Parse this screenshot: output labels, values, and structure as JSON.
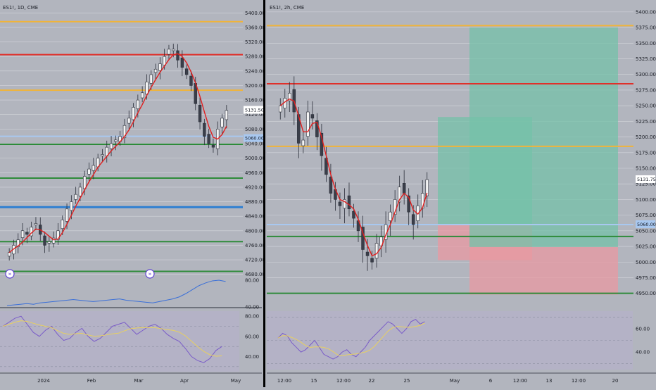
{
  "left_chart": {
    "title": "ES1!, 1D, CME",
    "price_tag": "5131.50",
    "blue_tag": "5060.00",
    "price_axis": [
      "5400.00",
      "5360.00",
      "5320.00",
      "5280.00",
      "5240.00",
      "5200.00",
      "5160.00",
      "5120.00",
      "5080.00",
      "5040.00",
      "5000.00",
      "4960.00",
      "4920.00",
      "4880.00",
      "4840.00",
      "4800.00",
      "4760.00",
      "4720.00",
      "4680.00"
    ],
    "indicator_axis": [
      "80.00",
      "40.00"
    ],
    "rsi_axis": [
      "80.00",
      "60.00",
      "40.00"
    ],
    "time_axis": [
      "2024",
      "Feb",
      "Mar",
      "Apr",
      "May"
    ]
  },
  "right_chart": {
    "title": "ES1!, 2h, CME",
    "price_tag": "5131.75",
    "blue_tag": "5060.00",
    "price_axis": [
      "5400.00",
      "5375.00",
      "5350.00",
      "5325.00",
      "5300.00",
      "5275.00",
      "5250.00",
      "5225.00",
      "5200.00",
      "5175.00",
      "5150.00",
      "5125.00",
      "5100.00",
      "5075.00",
      "5050.00",
      "5025.00",
      "5000.00",
      "4975.00",
      "4950.00"
    ],
    "rsi_axis": [
      "60.00",
      "40.00"
    ],
    "time_axis": [
      "12:00",
      "15",
      "12:00",
      "22",
      "25",
      "May",
      "6",
      "12:00",
      "13",
      "12:00",
      "20"
    ]
  },
  "colors": {
    "background": "#b2b5be",
    "gold_line": "#f0b43a",
    "red_line": "#e0302a",
    "green_line": "#2e8b3a",
    "blue_line": "#2f7fd1",
    "light_blue_line": "#a8c8f0",
    "ma_line": "#e02020",
    "indicator_line": "#3a6fd8",
    "rsi_line": "#7a5cc8",
    "rsi_ma": "#e8d060",
    "target_zone": "#74c2a8",
    "stop_zone": "#e89aa2",
    "divider": "#000000"
  },
  "chart_data": [
    {
      "type": "candlestick",
      "title": "ES1!, 1D, CME",
      "xlabel": "",
      "ylabel": "",
      "ylim": [
        4660,
        5420
      ],
      "x_ticks": [
        "2024",
        "Feb",
        "Mar",
        "Apr",
        "May"
      ],
      "horizontal_levels": [
        {
          "price": 5376,
          "color": "gold"
        },
        {
          "price": 5285,
          "color": "red"
        },
        {
          "price": 5187,
          "color": "gold"
        },
        {
          "price": 5060,
          "color": "light-blue"
        },
        {
          "price": 5038,
          "color": "green"
        },
        {
          "price": 4945,
          "color": "green"
        },
        {
          "price": 4865,
          "color": "blue"
        },
        {
          "price": 4770,
          "color": "green"
        },
        {
          "price": 4688,
          "color": "green"
        }
      ],
      "close_approx": [
        4740,
        4760,
        4775,
        4800,
        4790,
        4810,
        4820,
        4790,
        4760,
        4770,
        4780,
        4800,
        4830,
        4860,
        4880,
        4900,
        4920,
        4950,
        4970,
        4980,
        5000,
        5010,
        5030,
        5040,
        5050,
        5060,
        5090,
        5110,
        5140,
        5160,
        5180,
        5210,
        5230,
        5245,
        5260,
        5280,
        5300,
        5300,
        5270,
        5250,
        5230,
        5200,
        5150,
        5100,
        5060,
        5040,
        5030,
        5080,
        5110,
        5131.5
      ],
      "last_price": 5131.5
    },
    {
      "type": "candlestick",
      "title": "ES1!, 2h, CME",
      "xlabel": "",
      "ylabel": "",
      "ylim": [
        4935,
        5410
      ],
      "x_ticks": [
        "12:00",
        "15",
        "12:00",
        "22",
        "25",
        "May",
        "6",
        "12:00",
        "13",
        "12:00",
        "20"
      ],
      "horizontal_levels": [
        {
          "price": 5378,
          "color": "gold"
        },
        {
          "price": 5285,
          "color": "red"
        },
        {
          "price": 5185,
          "color": "gold"
        },
        {
          "price": 5060,
          "color": "light-blue"
        },
        {
          "price": 5041,
          "color": "green"
        },
        {
          "price": 4950,
          "color": "green"
        }
      ],
      "close_approx": [
        5250,
        5262,
        5270,
        5240,
        5190,
        5195,
        5240,
        5230,
        5200,
        5170,
        5140,
        5110,
        5100,
        5090,
        5100,
        5085,
        5070,
        5050,
        5020,
        5010,
        5000,
        5030,
        5040,
        5060,
        5080,
        5100,
        5120,
        5110,
        5080,
        5060,
        5090,
        5110,
        5131.75
      ],
      "last_price": 5131.75,
      "position_zones": [
        {
          "kind": "target",
          "from": 5060,
          "to": 5375
        },
        {
          "kind": "stop",
          "from": 4950,
          "to": 5060
        }
      ]
    }
  ]
}
